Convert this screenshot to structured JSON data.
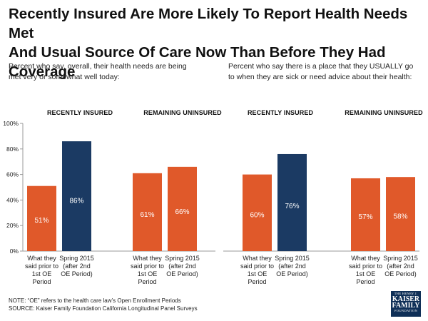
{
  "title_line1": "Recently Insured Are More Likely To Report Health Needs Met",
  "title_line2": "And Usual Source Of Care Now Than Before They Had Coverage",
  "subtitle_left": "Percent who say, overall, their health needs are being met very or somewhat well today:",
  "subtitle_right": "Percent who say there is a place that they USUALLY go to when they are sick or need advice about their health:",
  "note": "NOTE: “OE” refers to the health care law’s Open Enrollment  Periods",
  "source": "SOURCE: Kaiser Family Foundation California Longitudinal Panel Surveys",
  "logo": {
    "line1": "THE HENRY J.",
    "line2": "KAISER",
    "line3": "FAMILY",
    "line4": "FOUNDATION"
  },
  "colors": {
    "before": "#e0592a",
    "after_insured": "#1b3a63",
    "after_uninsured": "#e0592a",
    "axis": "#999999"
  },
  "chart_data": [
    {
      "type": "bar",
      "title": "Percent who say, overall, their health needs are being met very or somewhat well today",
      "ylim": [
        0,
        100
      ],
      "yticks": [
        "0%",
        "20%",
        "40%",
        "60%",
        "80%",
        "100%"
      ],
      "groups": [
        {
          "name": "RECENTLY INSURED",
          "bars": [
            {
              "category": "What they said prior to 1st OE Period",
              "lines": [
                "What they",
                "said prior to",
                "1st OE",
                "Period"
              ],
              "value": 51,
              "label": "51%",
              "color_key": "before"
            },
            {
              "category": "Spring 2015 (after 2nd OE Period)",
              "lines": [
                "Spring 2015",
                "(after 2nd",
                "OE Period)"
              ],
              "value": 86,
              "label": "86%",
              "color_key": "after_insured"
            }
          ]
        },
        {
          "name": "REMAINING UNINSURED",
          "bars": [
            {
              "category": "What they said prior to 1st OE Period",
              "lines": [
                "What they",
                "said prior to",
                "1st OE",
                "Period"
              ],
              "value": 61,
              "label": "61%",
              "color_key": "before"
            },
            {
              "category": "Spring 2015 (after 2nd OE Period)",
              "lines": [
                "Spring 2015",
                "(after 2nd",
                "OE Period)"
              ],
              "value": 66,
              "label": "66%",
              "color_key": "after_uninsured"
            }
          ]
        }
      ]
    },
    {
      "type": "bar",
      "title": "Percent who say there is a place that they USUALLY go to when they are sick or need advice about their health",
      "ylim": [
        0,
        100
      ],
      "yticks": [],
      "groups": [
        {
          "name": "RECENTLY INSURED",
          "bars": [
            {
              "category": "What they said prior to 1st OE Period",
              "lines": [
                "What they",
                "said prior to",
                "1st OE",
                "Period"
              ],
              "value": 60,
              "label": "60%",
              "color_key": "before"
            },
            {
              "category": "Spring 2015 (after 2nd OE Period)",
              "lines": [
                "Spring 2015",
                "(after 2nd",
                "OE Period)"
              ],
              "value": 76,
              "label": "76%",
              "color_key": "after_insured"
            }
          ]
        },
        {
          "name": "REMAINING UNINSURED",
          "bars": [
            {
              "category": "What they said prior to 1st OE Period",
              "lines": [
                "What they",
                "said prior to",
                "1st OE",
                "Period"
              ],
              "value": 57,
              "label": "57%",
              "color_key": "before"
            },
            {
              "category": "Spring 2015 (after 2nd OE Period)",
              "lines": [
                "Spring 2015",
                "(after 2nd",
                "OE Period)"
              ],
              "value": 58,
              "label": "58%",
              "color_key": "after_uninsured"
            }
          ]
        }
      ]
    }
  ]
}
